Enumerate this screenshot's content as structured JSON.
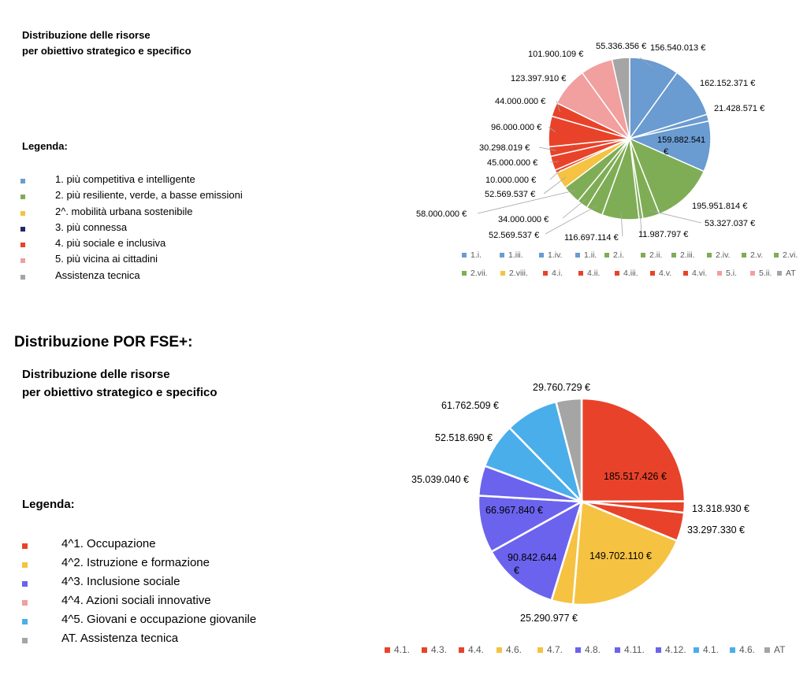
{
  "section1": {
    "title_line1": "Distribuzione delle risorse",
    "title_line2": "per obiettivo strategico e specifico",
    "legenda_label": "Legenda:",
    "legend": [
      {
        "label": "1. più competitiva e intelligente",
        "color": "#6a9bd1"
      },
      {
        "label": "2. più resiliente, verde, a basse emissioni",
        "color": "#7fad55"
      },
      {
        "label": "2^. mobilità urbana sostenibile",
        "color": "#f5c242"
      },
      {
        "label": "3. più connessa",
        "color": "#1f2a6b"
      },
      {
        "label": "4. più sociale e inclusiva",
        "color": "#e8432a"
      },
      {
        "label": "5. più vicina ai cittadini",
        "color": "#f19f9f"
      },
      {
        "label": "Assistenza tecnica",
        "color": "#a5a5a5"
      }
    ]
  },
  "section2": {
    "heading": "Distribuzione POR FSE+:",
    "title_line1": "Distribuzione delle risorse",
    "title_line2": "per obiettivo strategico e specifico",
    "legenda_label": "Legenda:",
    "legend": [
      {
        "label": "4^1. Occupazione",
        "color": "#e8432a"
      },
      {
        "label": "4^2. Istruzione e formazione",
        "color": "#f5c242"
      },
      {
        "label": "4^3. Inclusione sociale",
        "color": "#6b63ee"
      },
      {
        "label": "4^4. Azioni sociali innovative",
        "color": "#f19f9f"
      },
      {
        "label": "4^5. Giovani e occupazione giovanile",
        "color": "#4aaeea"
      },
      {
        "label": "AT. Assistenza tecnica",
        "color": "#a5a5a5"
      }
    ]
  },
  "chart_data": [
    {
      "type": "pie",
      "title": "",
      "series": [
        {
          "name": "1.i.",
          "value": 156540013,
          "color": "#6a9bd1",
          "label": "156.540.013  €"
        },
        {
          "name": "1.iii.",
          "value": 162152371,
          "color": "#6a9bd1",
          "label": "162.152.371  €"
        },
        {
          "name": "1.iv.",
          "value": 21428571,
          "color": "#6a9bd1",
          "label": "21.428.571  €"
        },
        {
          "name": "1.ii.",
          "value": 159882541,
          "color": "#6a9bd1",
          "label": "159.882.541 €"
        },
        {
          "name": "2.i.",
          "value": 195951814,
          "color": "#7fad55",
          "label": "195.951.814  €"
        },
        {
          "name": "2.ii.",
          "value": 53327037,
          "color": "#7fad55",
          "label": "53.327.037  €"
        },
        {
          "name": "2.iii.",
          "value": 11987797,
          "color": "#7fad55",
          "label": "11.987.797  €"
        },
        {
          "name": "2.iv.",
          "value": 116697114,
          "color": "#7fad55",
          "label": "116.697.114  €"
        },
        {
          "name": "2.v.",
          "value": 52569537,
          "color": "#7fad55",
          "label": "52.569.537  €"
        },
        {
          "name": "2.vi.",
          "value": 34000000,
          "color": "#7fad55",
          "label": "34.000.000  €"
        },
        {
          "name": "2.vii.",
          "value": 58000000,
          "color": "#7fad55",
          "label": "58.000.000  €"
        },
        {
          "name": "2.viii.",
          "value": 52569537,
          "color": "#f5c242",
          "label": "52.569.537  €"
        },
        {
          "name": "4.i.",
          "value": 10000000,
          "color": "#e8432a",
          "label": "10.000.000  €"
        },
        {
          "name": "4.ii.",
          "value": 45000000,
          "color": "#e8432a",
          "label": "45.000.000  €"
        },
        {
          "name": "4.iii.",
          "value": 30298019,
          "color": "#e8432a",
          "label": "30.298.019  €"
        },
        {
          "name": "4.v.",
          "value": 96000000,
          "color": "#e8432a",
          "label": "96.000.000  €"
        },
        {
          "name": "4.vi.",
          "value": 44000000,
          "color": "#e8432a",
          "label": "44.000.000  €"
        },
        {
          "name": "5.i.",
          "value": 123397910,
          "color": "#f19f9f",
          "label": "123.397.910  €"
        },
        {
          "name": "5.ii.",
          "value": 101900109,
          "color": "#f19f9f",
          "label": "101.900.109  €"
        },
        {
          "name": "AT",
          "value": 55336356,
          "color": "#a5a5a5",
          "label": "55.336.356  €"
        }
      ],
      "legend_order": [
        "1.i.",
        "1.iii.",
        "1.iv.",
        "1.ii.",
        "2.i.",
        "2.ii.",
        "2.iii.",
        "2.iv.",
        "2.v.",
        "2.vi.",
        "2.vii.",
        "2.viii.",
        "4.i.",
        "4.ii.",
        "4.iii.",
        "4.v.",
        "4.vi.",
        "5.i.",
        "5.ii.",
        "AT"
      ],
      "legend_placement": "bottom"
    },
    {
      "type": "pie",
      "title": "",
      "series": [
        {
          "name": "4.1.",
          "value": 185517426,
          "color": "#e8432a",
          "label": "185.517.426  €"
        },
        {
          "name": "4.3.",
          "value": 13318930,
          "color": "#e8432a",
          "label": "13.318.930  €"
        },
        {
          "name": "4.4.",
          "value": 33297330,
          "color": "#e8432a",
          "label": "33.297.330  €"
        },
        {
          "name": "4.6.",
          "value": 149702110,
          "color": "#f5c242",
          "label": "149.702.110  €"
        },
        {
          "name": "4.7.",
          "value": 25290977,
          "color": "#f5c242",
          "label": "25.290.977  €"
        },
        {
          "name": "4.8.",
          "value": 90842644,
          "color": "#6b63ee",
          "label": "90.842.644 €"
        },
        {
          "name": "4.11.",
          "value": 66967840,
          "color": "#6b63ee",
          "label": "66.967.840  €"
        },
        {
          "name": "4.12.",
          "value": 35039040,
          "color": "#6b63ee",
          "label": "35.039.040  €"
        },
        {
          "name": "4.1.",
          "value": 52518690,
          "color": "#4aaeea",
          "label": "52.518.690  €"
        },
        {
          "name": "4.6.",
          "value": 61762509,
          "color": "#4aaeea",
          "label": "61.762.509  €"
        },
        {
          "name": "AT",
          "value": 29760729,
          "color": "#a5a5a5",
          "label": "29.760.729  €"
        }
      ],
      "legend_order": [
        "4.1.",
        "4.3.",
        "4.4.",
        "4.6.",
        "4.7.",
        "4.8.",
        "4.11.",
        "4.12.",
        "4.1.",
        "4.6.",
        "AT"
      ],
      "legend_placement": "bottom"
    }
  ]
}
